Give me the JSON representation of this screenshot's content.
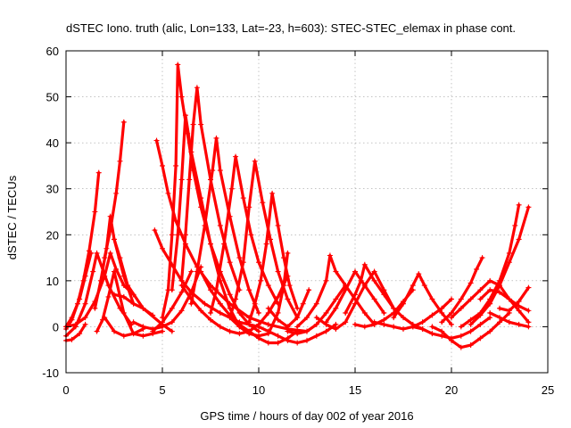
{
  "chart_data": {
    "type": "scatter",
    "title": "dSTEC Iono. truth (alic, Lon=133, Lat=-23, h=603): STEC-STEC_elemax in phase cont.",
    "xlabel": "GPS time / hours of day 002 of year 2016",
    "ylabel": "dSTEC  / TECUs",
    "xlim": [
      0,
      25
    ],
    "ylim": [
      -10,
      60
    ],
    "xticks": [
      0,
      5,
      10,
      15,
      20,
      25
    ],
    "yticks": [
      -10,
      0,
      10,
      20,
      30,
      40,
      50,
      60
    ],
    "xtick_labels": [
      "0",
      "5",
      "10",
      "15",
      "20",
      "25"
    ],
    "ytick_labels": [
      "-10",
      "0",
      "10",
      "20",
      "30",
      "40",
      "50",
      "60"
    ],
    "grid": true,
    "legend": "none",
    "marker": "+",
    "color": "#ff0000",
    "series": [
      {
        "x": [
          0.0,
          0.3,
          0.6,
          0.9,
          1.2,
          1.5,
          1.7
        ],
        "y": [
          -0.5,
          1.5,
          5.0,
          10.0,
          16.5,
          25.0,
          33.5
        ]
      },
      {
        "x": [
          0.0,
          0.5,
          1.0,
          1.4,
          1.6,
          2.2,
          2.8,
          3.4
        ],
        "y": [
          -2.0,
          0.0,
          5.0,
          12.0,
          16.0,
          9.0,
          4.0,
          0.5
        ]
      },
      {
        "x": [
          0.0,
          0.3,
          0.7,
          1.0
        ],
        "y": [
          -3.0,
          -2.8,
          -1.5,
          0.5
        ]
      },
      {
        "x": [
          0.0,
          0.5,
          1.0,
          1.5,
          2.0,
          2.3,
          2.6,
          3.0,
          3.5
        ],
        "y": [
          0.0,
          0.5,
          2.0,
          5.5,
          11.0,
          16.0,
          12.5,
          9.0,
          7.0
        ]
      },
      {
        "x": [
          0.0,
          0.3,
          0.7,
          1.0,
          1.3
        ],
        "y": [
          0.0,
          2.0,
          6.0,
          11.0,
          16.0
        ]
      },
      {
        "x": [
          1.5,
          1.8,
          2.1,
          2.3,
          2.5,
          3.0,
          3.5
        ],
        "y": [
          4.0,
          10.0,
          17.0,
          24.0,
          19.0,
          11.0,
          5.0
        ]
      },
      {
        "x": [
          2.0,
          2.3,
          2.6,
          2.8,
          3.0
        ],
        "y": [
          15.0,
          21.0,
          29.0,
          36.0,
          44.5
        ]
      },
      {
        "x": [
          2.5,
          2.8,
          3.2,
          4.0,
          5.0,
          5.5
        ],
        "y": [
          19.0,
          15.0,
          9.0,
          4.0,
          0.5,
          -1.0
        ]
      },
      {
        "x": [
          1.6,
          1.9,
          2.2,
          2.5,
          3.0,
          3.5,
          4.0,
          4.5,
          5.0
        ],
        "y": [
          -1.0,
          1.5,
          6.5,
          12.0,
          3.0,
          -1.5,
          -2.0,
          -1.5,
          -1.0
        ]
      },
      {
        "x": [
          2.0,
          2.5,
          3.0,
          3.5,
          4.0
        ],
        "y": [
          2.0,
          -1.0,
          -2.0,
          -1.5,
          -0.5
        ]
      },
      {
        "x": [
          2.5,
          3.0,
          3.5,
          4.0,
          4.5
        ],
        "y": [
          7.0,
          6.5,
          5.0,
          4.0,
          2.5
        ]
      },
      {
        "x": [
          4.7,
          5.0,
          5.3,
          5.7,
          6.2,
          6.8,
          7.5,
          8.5,
          9.5,
          10.5,
          11.5,
          12.5
        ],
        "y": [
          40.5,
          35.0,
          29.0,
          23.0,
          18.0,
          13.0,
          9.0,
          5.0,
          2.0,
          0.5,
          -0.5,
          -1.0
        ]
      },
      {
        "x": [
          4.6,
          5.0,
          5.5,
          6.0,
          6.5,
          7.2,
          8.0,
          9.0,
          10.0
        ],
        "y": [
          21.0,
          17.0,
          13.5,
          10.0,
          7.5,
          5.0,
          3.0,
          1.0,
          0.0
        ]
      },
      {
        "x": [
          3.5,
          4.0,
          4.5,
          5.0,
          5.5,
          6.0,
          6.5,
          7.0
        ],
        "y": [
          1.0,
          0.0,
          -0.5,
          0.0,
          1.0,
          3.5,
          7.5,
          13.0
        ]
      },
      {
        "x": [
          4.5,
          5.0,
          5.5,
          6.0,
          6.5
        ],
        "y": [
          -1.0,
          1.0,
          4.0,
          7.5,
          12.0
        ]
      },
      {
        "x": [
          5.0,
          5.3,
          5.5,
          5.7,
          5.8,
          6.0,
          6.3,
          6.6,
          7.0,
          7.5,
          8.0,
          8.5,
          9.0,
          9.5,
          10.0
        ],
        "y": [
          2.0,
          8.0,
          20.0,
          35.0,
          57.0,
          50.0,
          42.0,
          34.0,
          26.0,
          18.0,
          12.0,
          7.0,
          3.0,
          0.5,
          -1.0
        ]
      },
      {
        "x": [
          5.5,
          5.8,
          6.0,
          6.2,
          6.5,
          7.0,
          7.5,
          8.0,
          8.5,
          9.0
        ],
        "y": [
          8.0,
          20.0,
          32.0,
          46.0,
          38.0,
          28.0,
          18.0,
          10.0,
          4.0,
          0.0
        ]
      },
      {
        "x": [
          6.0,
          6.2,
          6.4,
          6.6,
          6.8,
          7.0,
          7.5,
          8.0,
          8.5,
          9.0
        ],
        "y": [
          10.0,
          20.0,
          32.0,
          44.0,
          52.0,
          44.0,
          32.0,
          22.0,
          14.0,
          8.0
        ]
      },
      {
        "x": [
          6.5,
          6.8,
          7.2,
          7.6,
          7.8,
          8.0,
          8.5,
          9.0,
          9.5,
          10.0
        ],
        "y": [
          5.0,
          12.0,
          22.0,
          34.0,
          41.0,
          34.0,
          24.0,
          15.0,
          8.0,
          3.0
        ]
      },
      {
        "x": [
          7.5,
          7.8,
          8.2,
          8.6,
          8.8,
          9.2,
          9.6,
          10.0,
          10.5,
          11.0
        ],
        "y": [
          3.0,
          8.0,
          18.0,
          30.0,
          37.0,
          28.0,
          20.0,
          14.0,
          9.0,
          5.0
        ]
      },
      {
        "x": [
          8.5,
          8.8,
          9.2,
          9.5,
          9.8,
          10.2,
          10.6,
          11.0,
          11.5,
          12.0
        ],
        "y": [
          2.0,
          6.0,
          14.0,
          26.0,
          36.0,
          27.0,
          19.0,
          12.0,
          6.0,
          2.0
        ]
      },
      {
        "x": [
          9.5,
          9.8,
          10.1,
          10.4,
          10.7,
          11.0,
          11.3,
          11.6,
          12.0
        ],
        "y": [
          1.0,
          5.0,
          10.0,
          18.0,
          29.0,
          22.0,
          15.0,
          9.0,
          4.0
        ]
      },
      {
        "x": [
          6.0,
          6.5,
          7.0,
          7.5,
          8.0,
          8.5,
          9.0,
          9.5,
          10.0,
          10.5,
          11.0,
          11.5
        ],
        "y": [
          9.0,
          6.0,
          3.5,
          1.5,
          0.0,
          -1.0,
          -1.5,
          -1.0,
          0.5,
          3.0,
          6.5,
          11.0
        ]
      },
      {
        "x": [
          7.0,
          7.5,
          8.0,
          8.5,
          9.0,
          9.5,
          10.0,
          10.5,
          11.0,
          11.5,
          12.0
        ],
        "y": [
          12.0,
          8.0,
          5.0,
          2.5,
          0.5,
          -1.0,
          -2.5,
          -3.5,
          -3.5,
          -2.5,
          -1.0
        ]
      },
      {
        "x": [
          8.5,
          9.0,
          9.5,
          10.0,
          10.5,
          11.0,
          11.3,
          11.5
        ],
        "y": [
          2.0,
          0.0,
          -1.5,
          -2.0,
          -1.5,
          3.0,
          9.0,
          16.0
        ]
      },
      {
        "x": [
          10.0,
          10.5,
          11.0,
          11.5,
          12.0,
          12.5,
          13.0,
          13.5,
          14.0
        ],
        "y": [
          0.0,
          -1.0,
          -2.0,
          -3.0,
          -3.5,
          -3.0,
          -2.0,
          -1.0,
          0.5
        ]
      },
      {
        "x": [
          10.5,
          11.0,
          11.5,
          12.0,
          12.3,
          12.6
        ],
        "y": [
          4.0,
          1.5,
          0.0,
          2.0,
          5.0,
          8.0
        ]
      },
      {
        "x": [
          11.5,
          12.0,
          12.5,
          13.0,
          13.5,
          14.0,
          14.5
        ],
        "y": [
          -1.0,
          -1.5,
          -1.0,
          0.5,
          3.0,
          6.0,
          9.0
        ]
      },
      {
        "x": [
          12.0,
          12.5,
          13.0,
          13.5,
          13.7,
          14.0,
          14.5,
          15.0,
          15.5,
          16.0
        ],
        "y": [
          0.0,
          2.0,
          5.0,
          10.0,
          15.5,
          12.0,
          9.0,
          6.0,
          3.0,
          0.5
        ]
      },
      {
        "x": [
          13.5,
          14.0,
          14.5,
          15.0,
          15.5,
          16.0,
          16.5
        ],
        "y": [
          1.0,
          4.0,
          8.0,
          12.0,
          9.0,
          6.0,
          3.0
        ]
      },
      {
        "x": [
          13.0,
          13.5,
          14.0,
          14.5,
          15.0,
          15.5,
          16.0,
          16.5,
          17.0
        ],
        "y": [
          2.0,
          0.5,
          -0.5,
          1.0,
          5.0,
          9.0,
          12.0,
          8.0,
          4.0
        ]
      },
      {
        "x": [
          14.5,
          15.0,
          15.3,
          15.5,
          16.0,
          16.5,
          17.0,
          17.5,
          18.0,
          18.5
        ],
        "y": [
          3.0,
          7.0,
          10.0,
          13.5,
          10.0,
          7.0,
          4.0,
          2.0,
          0.5,
          -0.5
        ]
      },
      {
        "x": [
          15.0,
          15.5,
          16.0,
          16.5,
          17.0,
          17.5,
          18.0
        ],
        "y": [
          0.5,
          0.0,
          0.5,
          1.5,
          3.0,
          5.5,
          8.0
        ]
      },
      {
        "x": [
          16.0,
          16.5,
          17.0,
          17.5,
          18.0,
          18.5,
          19.0,
          19.5,
          20.0
        ],
        "y": [
          1.0,
          0.5,
          0.0,
          -0.5,
          0.0,
          1.0,
          2.5,
          4.0,
          6.0
        ]
      },
      {
        "x": [
          17.0,
          17.5,
          18.0,
          18.3,
          18.6,
          19.0,
          19.5,
          20.0
        ],
        "y": [
          2.0,
          5.0,
          9.0,
          11.5,
          9.0,
          6.0,
          3.0,
          0.5
        ]
      },
      {
        "x": [
          18.0,
          18.5,
          19.0,
          19.5,
          20.0,
          20.5,
          21.0,
          21.5,
          22.0
        ],
        "y": [
          0.0,
          -0.5,
          -1.5,
          -2.0,
          -2.5,
          -2.0,
          -1.0,
          0.5,
          2.0
        ]
      },
      {
        "x": [
          19.0,
          19.5,
          20.0,
          20.5,
          21.0,
          21.5,
          22.0,
          22.5,
          23.0
        ],
        "y": [
          0.0,
          -1.0,
          -3.0,
          -4.5,
          -4.0,
          -2.5,
          -1.0,
          1.0,
          3.0
        ]
      },
      {
        "x": [
          19.5,
          20.0,
          20.5,
          21.0,
          21.3,
          21.6
        ],
        "y": [
          1.0,
          3.0,
          6.0,
          9.5,
          12.5,
          15.0
        ]
      },
      {
        "x": [
          20.0,
          20.5,
          21.0,
          21.5,
          22.0,
          22.5,
          23.0,
          23.5,
          24.0
        ],
        "y": [
          2.0,
          4.0,
          6.0,
          8.0,
          10.0,
          9.0,
          6.0,
          3.5,
          1.0
        ]
      },
      {
        "x": [
          20.5,
          21.0,
          21.5,
          22.0,
          22.5,
          23.0,
          23.3,
          23.5
        ],
        "y": [
          0.0,
          1.5,
          3.0,
          6.0,
          10.0,
          16.0,
          22.0,
          26.5
        ]
      },
      {
        "x": [
          21.0,
          21.5,
          22.0,
          22.5,
          23.0,
          23.5,
          24.0
        ],
        "y": [
          0.5,
          2.5,
          5.0,
          9.0,
          14.0,
          19.0,
          26.0
        ]
      },
      {
        "x": [
          21.5,
          22.0,
          22.5,
          23.0,
          23.5,
          24.0
        ],
        "y": [
          6.0,
          8.0,
          7.5,
          6.0,
          4.5,
          3.5
        ]
      },
      {
        "x": [
          22.5,
          23.0,
          23.5,
          24.0
        ],
        "y": [
          4.0,
          3.5,
          5.5,
          8.5
        ]
      },
      {
        "x": [
          22.0,
          22.5,
          23.0,
          23.5,
          24.0
        ],
        "y": [
          3.0,
          2.0,
          1.0,
          0.5,
          0.0
        ]
      }
    ]
  }
}
